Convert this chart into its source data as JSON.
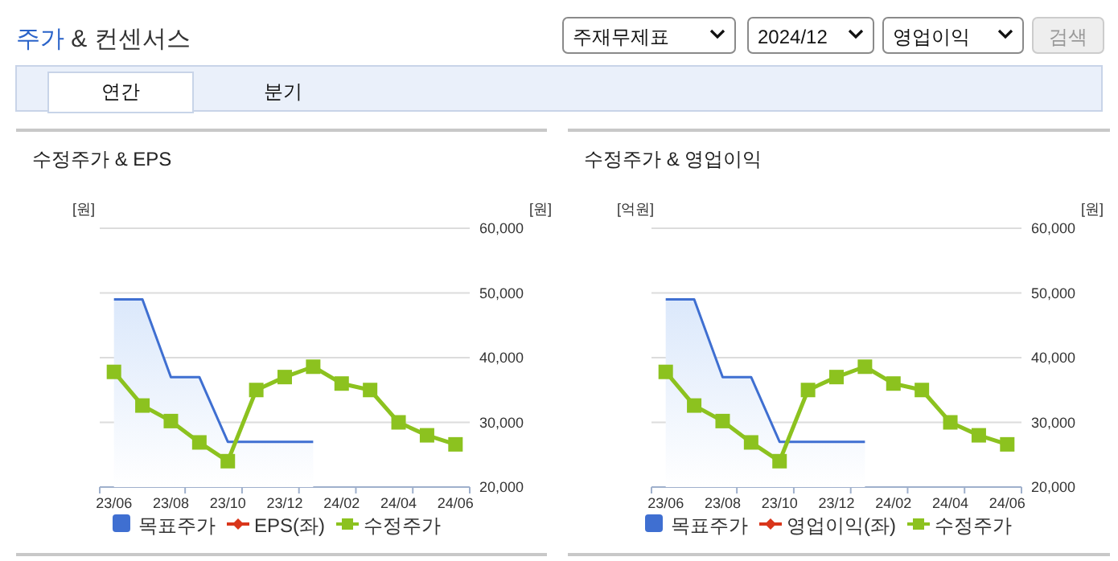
{
  "chart_data": [
    {
      "type": "other",
      "title": "주가 & 컨센서스",
      "annotations": [
        "주재무제표",
        "2024/12",
        "영업이익",
        "검색",
        "연간",
        "분기"
      ]
    },
    {
      "type": "line",
      "title": "수정주가 & EPS",
      "ylabel": "[원]",
      "y2label": "[원]",
      "categories": [
        "23/06",
        null,
        "23/08",
        null,
        "23/10",
        null,
        "23/12",
        null,
        "24/02",
        null,
        "24/04",
        null,
        "24/06"
      ],
      "y2lim": [
        20000,
        60000
      ],
      "y2ticks": [
        {
          "value": 20000,
          "label": "20,000"
        },
        {
          "value": 30000,
          "label": "30,000"
        },
        {
          "value": 40000,
          "label": "40,000"
        },
        {
          "value": 50000,
          "label": "50,000"
        },
        {
          "value": 60000,
          "label": "60,000"
        }
      ],
      "grid": "y",
      "legend": "bottom",
      "series": [
        {
          "name": "목표주가",
          "type": "area",
          "color": "#3f6fd1",
          "axis": "y2",
          "marker": "none",
          "values": [
            49000,
            49000,
            37000,
            37000,
            27000,
            27000,
            27000,
            27000,
            null,
            null,
            null,
            null,
            null
          ]
        },
        {
          "name": "EPS(좌)",
          "type": "line",
          "color": "#d9361b",
          "axis": "y",
          "marker": "diamond",
          "values": [
            null,
            null,
            null,
            null,
            null,
            null,
            null,
            null,
            null,
            null,
            null,
            null,
            null
          ]
        },
        {
          "name": "수정주가",
          "type": "line",
          "color": "#8cc21f",
          "axis": "y2",
          "marker": "square",
          "values": [
            37800,
            32600,
            30200,
            26900,
            24000,
            35000,
            37000,
            38600,
            36000,
            35000,
            30000,
            28000,
            26600
          ]
        }
      ]
    },
    {
      "type": "line",
      "title": "수정주가 & 영업이익",
      "ylabel": "[억원]",
      "y2label": "[원]",
      "categories": [
        "23/06",
        null,
        "23/08",
        null,
        "23/10",
        null,
        "23/12",
        null,
        "24/02",
        null,
        "24/04",
        null,
        "24/06"
      ],
      "y2lim": [
        20000,
        60000
      ],
      "y2ticks": [
        {
          "value": 20000,
          "label": "20,000"
        },
        {
          "value": 30000,
          "label": "30,000"
        },
        {
          "value": 40000,
          "label": "40,000"
        },
        {
          "value": 50000,
          "label": "50,000"
        },
        {
          "value": 60000,
          "label": "60,000"
        }
      ],
      "grid": "y",
      "legend": "bottom",
      "series": [
        {
          "name": "목표주가",
          "type": "area",
          "color": "#3f6fd1",
          "axis": "y2",
          "marker": "none",
          "values": [
            49000,
            49000,
            37000,
            37000,
            27000,
            27000,
            27000,
            27000,
            null,
            null,
            null,
            null,
            null
          ]
        },
        {
          "name": "영업이익(좌)",
          "type": "line",
          "color": "#d9361b",
          "axis": "y",
          "marker": "diamond",
          "values": [
            null,
            null,
            null,
            null,
            null,
            null,
            null,
            null,
            null,
            null,
            null,
            null,
            null
          ]
        },
        {
          "name": "수정주가",
          "type": "line",
          "color": "#8cc21f",
          "axis": "y2",
          "marker": "square",
          "values": [
            37800,
            32600,
            30200,
            26900,
            24000,
            35000,
            37000,
            38600,
            36000,
            35000,
            30000,
            28000,
            26600
          ]
        }
      ]
    }
  ]
}
